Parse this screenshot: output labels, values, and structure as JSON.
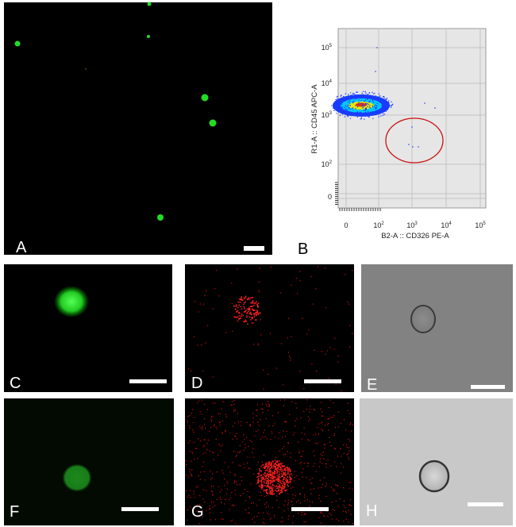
{
  "panels": {
    "A": "A",
    "B": "B",
    "C": "C",
    "D": "D",
    "E": "E",
    "F": "F",
    "G": "G",
    "H": "H"
  },
  "flow": {
    "y_axis_label": "R1-A :: CD45 APC-A",
    "x_axis_label": "B2-A :: CD326 PE-A",
    "yticks": [
      {
        "text": "10",
        "sup": "5"
      },
      {
        "text": "10",
        "sup": "4"
      },
      {
        "text": "10",
        "sup": "3"
      },
      {
        "text": "10",
        "sup": "2"
      },
      {
        "text": "0"
      }
    ],
    "xticks": [
      {
        "text": "0"
      },
      {
        "text": "10",
        "sup": "2"
      },
      {
        "text": "10",
        "sup": "3"
      },
      {
        "text": "10",
        "sup": "4"
      },
      {
        "text": "10",
        "sup": "5"
      }
    ]
  }
}
